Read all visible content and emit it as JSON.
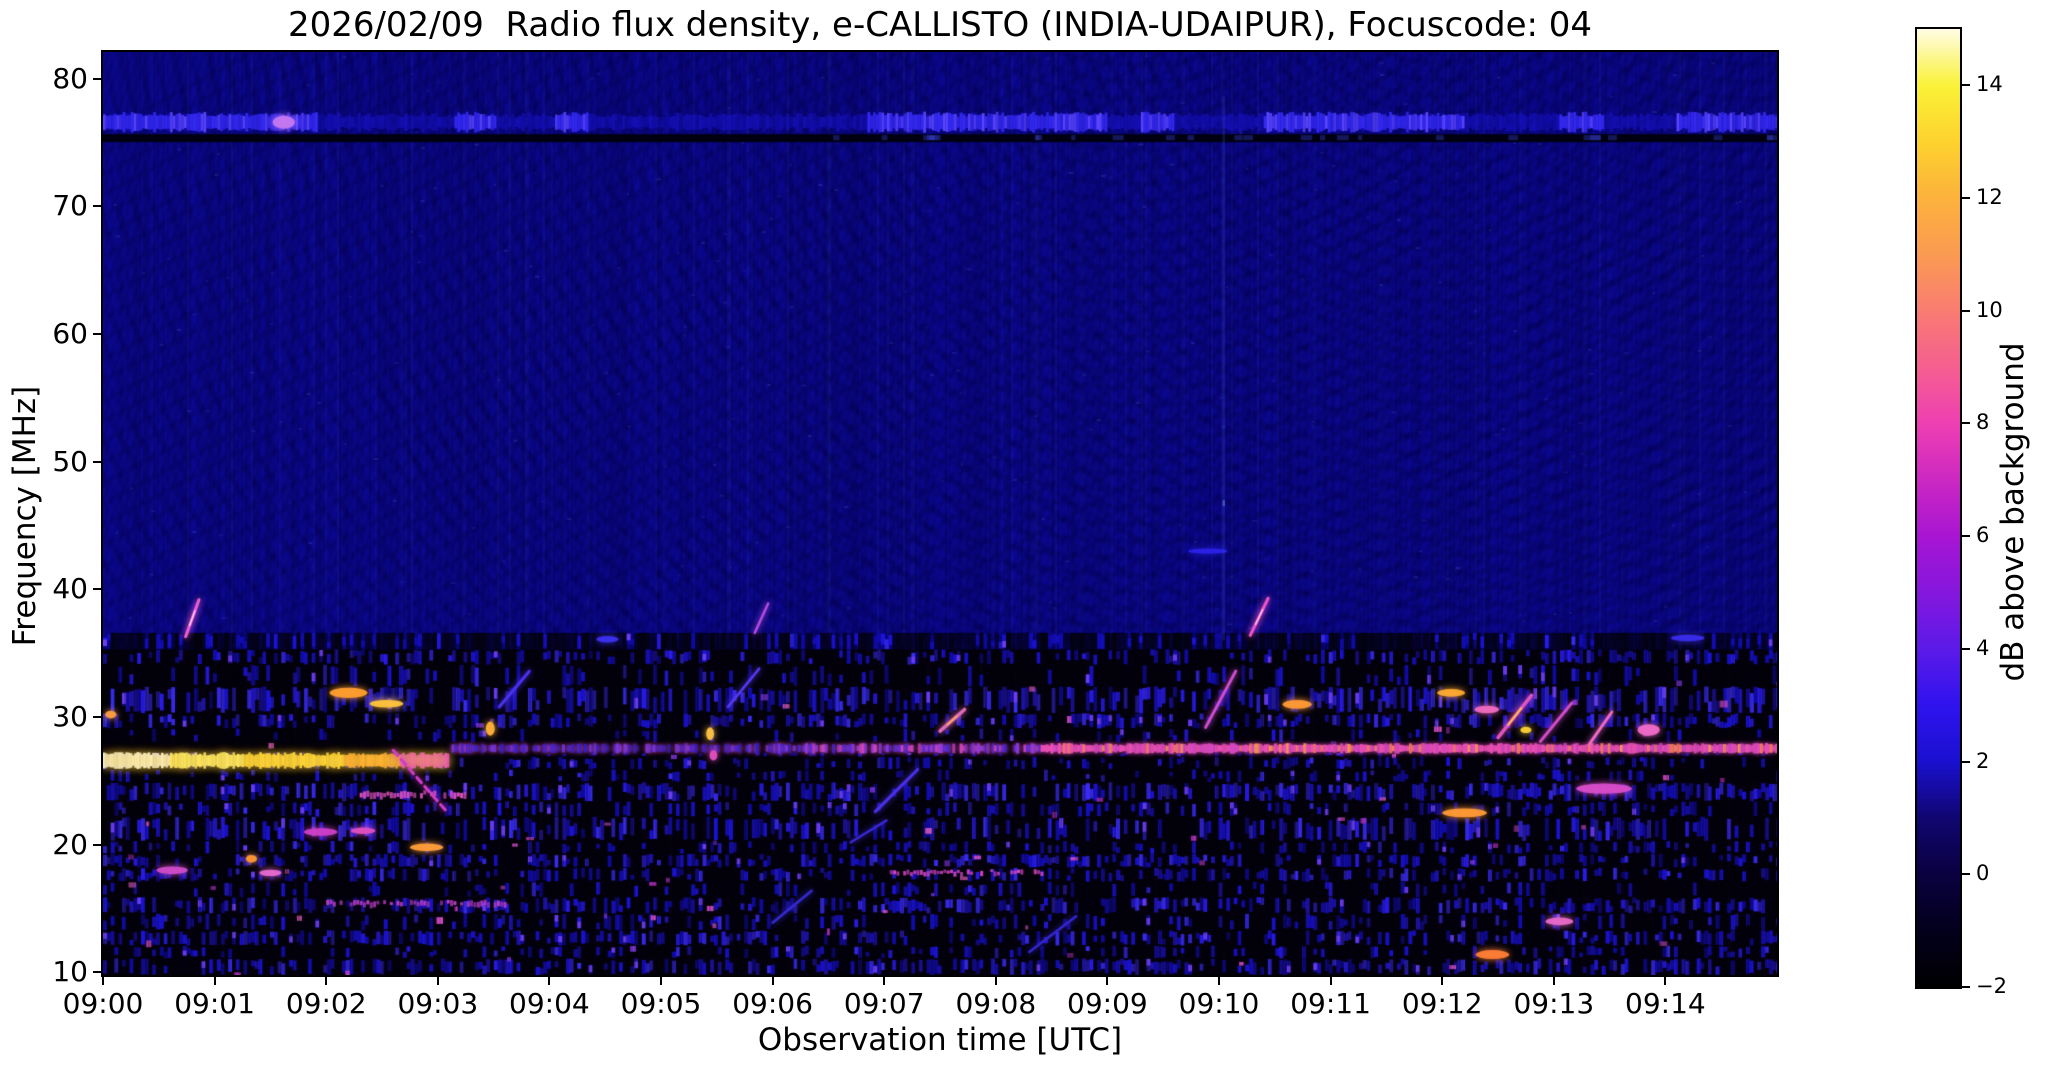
{
  "chart_data": {
    "type": "heatmap",
    "title": "2026/02/09  Radio flux density, e-CALLISTO (INDIA-UDAIPUR), Focuscode: 04",
    "xlabel": "Observation time [UTC]",
    "ylabel": "Frequency [MHz]",
    "x_range_minutes_after_0900": [
      0,
      15
    ],
    "y_range_mhz": [
      9.8,
      82.1
    ],
    "grid": false,
    "x_ticks": [
      {
        "t": 0,
        "label": "09:00"
      },
      {
        "t": 1,
        "label": "09:01"
      },
      {
        "t": 2,
        "label": "09:02"
      },
      {
        "t": 3,
        "label": "09:03"
      },
      {
        "t": 4,
        "label": "09:04"
      },
      {
        "t": 5,
        "label": "09:05"
      },
      {
        "t": 6,
        "label": "09:06"
      },
      {
        "t": 7,
        "label": "09:07"
      },
      {
        "t": 8,
        "label": "09:08"
      },
      {
        "t": 9,
        "label": "09:09"
      },
      {
        "t": 10,
        "label": "09:10"
      },
      {
        "t": 11,
        "label": "09:11"
      },
      {
        "t": 12,
        "label": "09:12"
      },
      {
        "t": 13,
        "label": "09:13"
      },
      {
        "t": 14,
        "label": "09:14"
      }
    ],
    "y_ticks_mhz": [
      80,
      70,
      60,
      50,
      40,
      30,
      20,
      10
    ],
    "colorbar": {
      "label": "dB above background",
      "range_db": [
        -2,
        15
      ],
      "ticks_db": [
        14,
        12,
        10,
        8,
        6,
        4,
        2,
        0,
        -2
      ],
      "stops": [
        {
          "v": -2,
          "c": "#000000"
        },
        {
          "v": -1,
          "c": "#03001c"
        },
        {
          "v": 0,
          "c": "#0a0140"
        },
        {
          "v": 1,
          "c": "#100670"
        },
        {
          "v": 2,
          "c": "#1a10cf"
        },
        {
          "v": 3,
          "c": "#2f13ef"
        },
        {
          "v": 4,
          "c": "#5c1ae8"
        },
        {
          "v": 5,
          "c": "#8517dd"
        },
        {
          "v": 6,
          "c": "#a815d2"
        },
        {
          "v": 7,
          "c": "#cc28c2"
        },
        {
          "v": 8,
          "c": "#ee3fb2"
        },
        {
          "v": 9,
          "c": "#f55f90"
        },
        {
          "v": 10,
          "c": "#f97c71"
        },
        {
          "v": 11,
          "c": "#fb9b52"
        },
        {
          "v": 12,
          "c": "#fcb23c"
        },
        {
          "v": 13,
          "c": "#fdd22e"
        },
        {
          "v": 14,
          "c": "#faf238"
        },
        {
          "v": 15,
          "c": "#fffce4"
        }
      ]
    },
    "background": {
      "base_color": "#0c0892",
      "quiet_zone_mhz": [
        35.3,
        82.1
      ],
      "busy_zone_mhz": [
        9.8,
        35.3
      ],
      "ripple_chevron_centers_t": [
        9.3,
        12.0,
        14.8
      ]
    },
    "features": {
      "rows": [
        {
          "f0": 35.3,
          "f1": 36.6,
          "dark": 0.78,
          "bright": 0.08
        },
        {
          "f0": 34.1,
          "f1": 35.3,
          "dark": 0.55,
          "bright": 0.25
        },
        {
          "f0": 32.4,
          "f1": 34.1,
          "dark": 0.78,
          "bright": 0.15
        },
        {
          "f0": 30.3,
          "f1": 32.4,
          "dark": 0.35,
          "bright": 0.55
        },
        {
          "f0": 29.1,
          "f1": 30.3,
          "dark": 0.5,
          "bright": 0.35
        },
        {
          "f0": 28.0,
          "f1": 29.1,
          "dark": 0.82,
          "bright": 0.12
        },
        {
          "f0": 26.9,
          "f1": 27.25,
          "dark": 0.85,
          "bright": 0.08
        },
        {
          "f0": 25.9,
          "f1": 26.9,
          "dark": 0.7,
          "bright": 0.2
        },
        {
          "f0": 24.9,
          "f1": 25.9,
          "dark": 0.75,
          "bright": 0.18
        },
        {
          "f0": 23.4,
          "f1": 24.9,
          "dark": 0.4,
          "bright": 0.45
        },
        {
          "f0": 22.2,
          "f1": 23.4,
          "dark": 0.65,
          "bright": 0.2
        },
        {
          "f0": 20.3,
          "f1": 22.2,
          "dark": 0.45,
          "bright": 0.4
        },
        {
          "f0": 19.3,
          "f1": 20.3,
          "dark": 0.75,
          "bright": 0.15
        },
        {
          "f0": 18.2,
          "f1": 19.3,
          "dark": 0.5,
          "bright": 0.3
        },
        {
          "f0": 17.1,
          "f1": 18.2,
          "dark": 0.55,
          "bright": 0.28
        },
        {
          "f0": 15.9,
          "f1": 17.1,
          "dark": 0.8,
          "bright": 0.12
        },
        {
          "f0": 14.6,
          "f1": 15.9,
          "dark": 0.45,
          "bright": 0.4
        },
        {
          "f0": 13.3,
          "f1": 14.6,
          "dark": 0.7,
          "bright": 0.18
        },
        {
          "f0": 12.1,
          "f1": 13.3,
          "dark": 0.5,
          "bright": 0.3
        },
        {
          "f0": 11.1,
          "f1": 12.1,
          "dark": 0.72,
          "bright": 0.15
        },
        {
          "f0": 9.8,
          "f1": 11.1,
          "dark": 0.45,
          "bright": 0.35
        }
      ],
      "lines": [
        {
          "type": "topband",
          "f": 76.6,
          "h": 1.5,
          "t0": 0,
          "t1": 15,
          "segs": [
            [
              0,
              1.9
            ],
            [
              3.15,
              3.5
            ],
            [
              4.05,
              4.35
            ],
            [
              6.85,
              9.0
            ],
            [
              9.3,
              9.6
            ],
            [
              10.4,
              12.2
            ],
            [
              13.05,
              13.45
            ],
            [
              14.1,
              15
            ]
          ]
        },
        {
          "type": "blacklane",
          "f": 75.35,
          "h": 0.6,
          "t0": 0,
          "t1": 15
        },
        {
          "type": "brightband",
          "f": 26.6,
          "h": 1.1,
          "t0": 0,
          "t1": 3.1
        },
        {
          "type": "rfiline",
          "f": 27.55,
          "h": 0.6,
          "t0": 3.1,
          "t1": 15
        },
        {
          "type": "magline",
          "f": 17.8,
          "h": 0.35,
          "t0": 7.05,
          "t1": 8.4,
          "c": "#d848c8"
        },
        {
          "type": "magline",
          "f": 23.9,
          "h": 0.5,
          "t0": 2.3,
          "t1": 3.25,
          "c": "#e052c0"
        },
        {
          "type": "magline",
          "f": 15.4,
          "h": 0.4,
          "t0": 2.0,
          "t1": 3.6,
          "c": "#c040c8"
        }
      ],
      "streaks": [
        {
          "t0": 0.74,
          "f0": 36.3,
          "t1": 0.86,
          "f1": 39.2,
          "c": "#ee5fd4",
          "core": "#ffd8f8",
          "w": 3
        },
        {
          "t0": 5.84,
          "f0": 36.6,
          "t1": 5.96,
          "f1": 38.9,
          "c": "#b24ce0",
          "w": 2.5
        },
        {
          "t0": 10.28,
          "f0": 36.4,
          "t1": 10.44,
          "f1": 39.3,
          "c": "#f055c8",
          "core": "#ffd0e8",
          "w": 3
        },
        {
          "t0": 2.6,
          "f0": 27.4,
          "t1": 3.08,
          "f1": 22.6,
          "c": "#d03cc8",
          "w": 3,
          "dash": 1
        },
        {
          "t0": 3.55,
          "f0": 30.8,
          "t1": 3.82,
          "f1": 33.6,
          "c": "#4a30f0",
          "w": 3
        },
        {
          "t0": 5.6,
          "f0": 30.8,
          "t1": 5.88,
          "f1": 33.8,
          "c": "#5438f0",
          "w": 2.5
        },
        {
          "t0": 6.92,
          "f0": 22.6,
          "t1": 7.3,
          "f1": 25.9,
          "c": "#4a30e8",
          "w": 3
        },
        {
          "t0": 7.5,
          "f0": 28.9,
          "t1": 7.72,
          "f1": 30.6,
          "c": "#e06ab8",
          "core": "#ffb040",
          "w": 3.5
        },
        {
          "t0": 6.7,
          "f0": 20.2,
          "t1": 7.02,
          "f1": 21.9,
          "c": "#3a28d8",
          "w": 2.5
        },
        {
          "t0": 9.88,
          "f0": 29.2,
          "t1": 10.15,
          "f1": 33.6,
          "c": "#cf4cd0",
          "w": 3
        },
        {
          "t0": 12.5,
          "f0": 28.4,
          "t1": 12.8,
          "f1": 31.7,
          "c": "#e055c0",
          "core": "#ffd234",
          "w": 3.5
        },
        {
          "t0": 12.88,
          "f0": 28.1,
          "t1": 13.16,
          "f1": 31.1,
          "c": "#d34cc8",
          "w": 3
        },
        {
          "t0": 13.32,
          "f0": 27.9,
          "t1": 13.52,
          "f1": 30.4,
          "c": "#f06ac0",
          "w": 3
        },
        {
          "t0": 8.3,
          "f0": 11.6,
          "t1": 8.72,
          "f1": 14.4,
          "c": "#3326d0",
          "w": 2.5
        },
        {
          "t0": 6.0,
          "f0": 13.9,
          "t1": 6.35,
          "f1": 16.4,
          "c": "#352ad0",
          "w": 2.5
        }
      ],
      "blobs": [
        {
          "t": 2.2,
          "f": 31.9,
          "w": 0.34,
          "h": 0.8,
          "c": "#ff9e2e"
        },
        {
          "t": 2.54,
          "f": 31.05,
          "w": 0.3,
          "h": 0.6,
          "c": "#ffc43c"
        },
        {
          "t": 10.7,
          "f": 31.0,
          "w": 0.26,
          "h": 0.7,
          "c": "#ff9a36"
        },
        {
          "t": 12.08,
          "f": 31.9,
          "w": 0.25,
          "h": 0.6,
          "c": "#ffab30"
        },
        {
          "t": 12.4,
          "f": 30.6,
          "w": 0.22,
          "h": 0.6,
          "c": "#f06ac0"
        },
        {
          "t": 1.62,
          "f": 76.6,
          "w": 0.2,
          "h": 1.0,
          "c": "#c478f0"
        },
        {
          "t": 0.07,
          "f": 30.2,
          "w": 0.1,
          "h": 0.6,
          "c": "#ff9e40"
        },
        {
          "t": 1.33,
          "f": 18.9,
          "w": 0.1,
          "h": 0.6,
          "c": "#ff9830"
        },
        {
          "t": 0.62,
          "f": 18.0,
          "w": 0.28,
          "h": 0.6,
          "c": "#d04cc8"
        },
        {
          "t": 1.5,
          "f": 17.8,
          "w": 0.2,
          "h": 0.5,
          "c": "#e86ad0"
        },
        {
          "t": 1.95,
          "f": 21.0,
          "w": 0.3,
          "h": 0.6,
          "c": "#cf40c8"
        },
        {
          "t": 2.33,
          "f": 21.1,
          "w": 0.22,
          "h": 0.5,
          "c": "#e050c0"
        },
        {
          "t": 2.9,
          "f": 19.8,
          "w": 0.3,
          "h": 0.6,
          "c": "#ff9e3a"
        },
        {
          "t": 3.47,
          "f": 29.1,
          "w": 0.08,
          "h": 1.1,
          "c": "#ffb23a"
        },
        {
          "t": 5.44,
          "f": 28.7,
          "w": 0.07,
          "h": 1.0,
          "c": "#ffc242"
        },
        {
          "t": 5.47,
          "f": 27.0,
          "w": 0.07,
          "h": 0.8,
          "c": "#e050c0"
        },
        {
          "t": 12.2,
          "f": 22.5,
          "w": 0.4,
          "h": 0.7,
          "c": "#ff9a36"
        },
        {
          "t": 13.45,
          "f": 24.4,
          "w": 0.5,
          "h": 0.8,
          "c": "#d84cc8"
        },
        {
          "t": 12.45,
          "f": 11.4,
          "w": 0.3,
          "h": 0.7,
          "c": "#ff7e36"
        },
        {
          "t": 13.05,
          "f": 14.0,
          "w": 0.25,
          "h": 0.6,
          "c": "#e86ac8"
        },
        {
          "t": 13.85,
          "f": 29.0,
          "w": 0.2,
          "h": 0.9,
          "c": "#f06ac8"
        },
        {
          "t": 4.52,
          "f": 36.1,
          "w": 0.2,
          "h": 0.5,
          "c": "#3c30f0"
        },
        {
          "t": 9.9,
          "f": 43.0,
          "w": 0.35,
          "h": 0.4,
          "c": "#2a22e8"
        },
        {
          "t": 14.2,
          "f": 36.2,
          "w": 0.3,
          "h": 0.5,
          "c": "#3a2cec"
        },
        {
          "t": 12.75,
          "f": 29.0,
          "w": 0.1,
          "h": 0.5,
          "c": "#ffd234"
        }
      ],
      "vlines": [
        {
          "t": 10.04,
          "f0": 36,
          "f1": 78.6
        }
      ]
    }
  }
}
